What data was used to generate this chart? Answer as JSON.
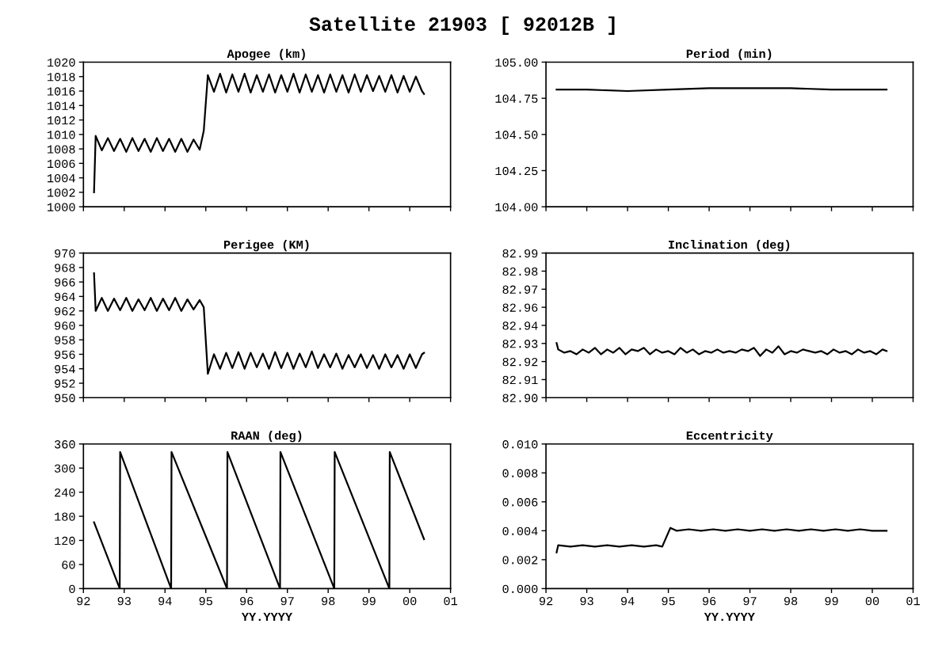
{
  "chart_data": [
    {
      "type": "line",
      "title": "Apogee (km)",
      "annotations": [
        "Satellite 21903 [ 92012B ]"
      ],
      "color": "#000000",
      "x": [
        1992.26,
        1992.3,
        1992.45,
        1992.6,
        1992.75,
        1992.9,
        1993.05,
        1993.2,
        1993.35,
        1993.5,
        1993.65,
        1993.8,
        1993.95,
        1994.1,
        1994.25,
        1994.4,
        1994.55,
        1994.7,
        1994.85,
        1994.95,
        1995.05,
        1995.2,
        1995.35,
        1995.5,
        1995.65,
        1995.8,
        1995.95,
        1996.1,
        1996.25,
        1996.4,
        1996.55,
        1996.7,
        1996.85,
        1997.0,
        1997.15,
        1997.3,
        1997.45,
        1997.6,
        1997.75,
        1997.9,
        1998.05,
        1998.2,
        1998.35,
        1998.5,
        1998.65,
        1998.8,
        1998.95,
        1999.1,
        1999.25,
        1999.4,
        1999.55,
        1999.7,
        1999.85,
        2000.0,
        2000.15,
        2000.3,
        2000.35
      ],
      "values": [
        1002,
        1009.8,
        1007.8,
        1009.5,
        1007.7,
        1009.4,
        1007.6,
        1009.5,
        1007.7,
        1009.4,
        1007.6,
        1009.5,
        1007.7,
        1009.4,
        1007.6,
        1009.4,
        1007.6,
        1009.3,
        1007.9,
        1010.5,
        1018.2,
        1015.9,
        1018.4,
        1015.8,
        1018.3,
        1015.9,
        1018.4,
        1015.8,
        1018.2,
        1015.9,
        1018.3,
        1015.8,
        1018.2,
        1015.9,
        1018.4,
        1015.8,
        1018.3,
        1015.9,
        1018.2,
        1015.8,
        1018.3,
        1015.9,
        1018.2,
        1015.8,
        1018.3,
        1015.9,
        1018.2,
        1016.0,
        1018.1,
        1015.9,
        1018.2,
        1015.8,
        1018.1,
        1015.9,
        1018.0,
        1016.0,
        1015.6
      ],
      "xlim": [
        1992,
        2001
      ],
      "xticks": [
        1992,
        1993,
        1994,
        1995,
        1996,
        1997,
        1998,
        1999,
        2000,
        2001
      ],
      "ylim": [
        1000,
        1020
      ],
      "yticks": [
        1000,
        1002,
        1004,
        1006,
        1008,
        1010,
        1012,
        1014,
        1016,
        1018,
        1020
      ],
      "tick_labels": "y"
    },
    {
      "type": "line",
      "title": "Period (min)",
      "color": "#000000",
      "x": [
        1992.26,
        1993.0,
        1994.0,
        1995.0,
        1996.0,
        1997.0,
        1998.0,
        1999.0,
        2000.35
      ],
      "values": [
        104.81,
        104.81,
        104.8,
        104.81,
        104.82,
        104.82,
        104.82,
        104.81,
        104.81
      ],
      "xlim": [
        1992,
        2001
      ],
      "xticks": [
        1992,
        1993,
        1994,
        1995,
        1996,
        1997,
        1998,
        1999,
        2000,
        2001
      ],
      "ylim": [
        104.0,
        105.0
      ],
      "yticks": [
        {
          "value": 104.0,
          "label": "104.00"
        },
        {
          "value": 104.25,
          "label": "104.25"
        },
        {
          "value": 104.5,
          "label": "104.50"
        },
        {
          "value": 104.75,
          "label": "104.75"
        },
        {
          "value": 105.0,
          "label": "105.00"
        }
      ],
      "tick_labels": "y"
    },
    {
      "type": "line",
      "title": "Perigee (KM)",
      "color": "#000000",
      "x": [
        1992.26,
        1992.3,
        1992.45,
        1992.6,
        1992.75,
        1992.9,
        1993.05,
        1993.2,
        1993.35,
        1993.5,
        1993.65,
        1993.8,
        1993.95,
        1994.1,
        1994.25,
        1994.4,
        1994.55,
        1994.7,
        1994.85,
        1994.95,
        1995.05,
        1995.2,
        1995.35,
        1995.5,
        1995.65,
        1995.8,
        1995.95,
        1996.1,
        1996.25,
        1996.4,
        1996.55,
        1996.7,
        1996.85,
        1997.0,
        1997.15,
        1997.3,
        1997.45,
        1997.6,
        1997.75,
        1997.9,
        1998.05,
        1998.2,
        1998.35,
        1998.5,
        1998.65,
        1998.8,
        1998.95,
        1999.1,
        1999.25,
        1999.4,
        1999.55,
        1999.7,
        1999.85,
        2000.0,
        2000.15,
        2000.3,
        2000.35
      ],
      "values": [
        967.2,
        962.0,
        963.8,
        962.0,
        963.7,
        962.1,
        963.8,
        962.0,
        963.6,
        962.1,
        963.8,
        962.0,
        963.7,
        962.1,
        963.8,
        962.0,
        963.6,
        962.2,
        963.5,
        962.5,
        953.3,
        956.0,
        954.0,
        956.2,
        954.1,
        956.3,
        954.0,
        956.2,
        954.2,
        956.1,
        954.0,
        956.3,
        954.1,
        956.2,
        954.0,
        956.1,
        954.2,
        956.4,
        954.1,
        956.0,
        954.2,
        956.1,
        954.0,
        955.9,
        954.2,
        956.0,
        954.1,
        955.9,
        954.0,
        956.0,
        954.2,
        955.9,
        954.0,
        956.0,
        954.1,
        956.0,
        956.2
      ],
      "xlim": [
        1992,
        2001
      ],
      "xticks": [
        1992,
        1993,
        1994,
        1995,
        1996,
        1997,
        1998,
        1999,
        2000,
        2001
      ],
      "ylim": [
        950,
        970
      ],
      "yticks": [
        950,
        952,
        954,
        956,
        958,
        960,
        962,
        964,
        966,
        968,
        970
      ],
      "tick_labels": "y"
    },
    {
      "type": "line",
      "title": "Inclination (deg)",
      "color": "#000000",
      "x": [
        1992.26,
        1992.3,
        1992.45,
        1992.6,
        1992.75,
        1992.9,
        1993.05,
        1993.2,
        1993.35,
        1993.5,
        1993.65,
        1993.8,
        1993.95,
        1994.1,
        1994.25,
        1994.4,
        1994.55,
        1994.7,
        1994.85,
        1995.0,
        1995.15,
        1995.3,
        1995.45,
        1995.6,
        1995.75,
        1995.9,
        1996.05,
        1996.2,
        1996.35,
        1996.5,
        1996.65,
        1996.8,
        1996.95,
        1997.1,
        1997.25,
        1997.4,
        1997.55,
        1997.7,
        1997.85,
        1998.0,
        1998.15,
        1998.3,
        1998.45,
        1998.6,
        1998.75,
        1998.9,
        1999.05,
        1999.2,
        1999.35,
        1999.5,
        1999.65,
        1999.8,
        1999.95,
        2000.1,
        2000.25,
        2000.35
      ],
      "values": [
        82.934,
        82.93,
        82.928,
        82.929,
        82.927,
        82.93,
        82.928,
        82.931,
        82.927,
        82.93,
        82.928,
        82.931,
        82.927,
        82.93,
        82.929,
        82.931,
        82.927,
        82.93,
        82.928,
        82.929,
        82.927,
        82.931,
        82.928,
        82.93,
        82.927,
        82.929,
        82.928,
        82.93,
        82.928,
        82.929,
        82.928,
        82.93,
        82.929,
        82.931,
        82.926,
        82.93,
        82.928,
        82.932,
        82.927,
        82.929,
        82.928,
        82.93,
        82.929,
        82.928,
        82.929,
        82.927,
        82.93,
        82.928,
        82.929,
        82.927,
        82.93,
        82.928,
        82.929,
        82.927,
        82.93,
        82.929
      ],
      "xlim": [
        1992,
        2001
      ],
      "xticks": [
        1992,
        1993,
        1994,
        1995,
        1996,
        1997,
        1998,
        1999,
        2000,
        2001
      ],
      "ylim": [
        82.9,
        82.99
      ],
      "yticks": [
        {
          "value": 82.9,
          "label": "82.90"
        },
        {
          "value": 82.91125,
          "label": "82.91"
        },
        {
          "value": 82.9225,
          "label": "82.92"
        },
        {
          "value": 82.93375,
          "label": "82.93"
        },
        {
          "value": 82.945,
          "label": "82.94"
        },
        {
          "value": 82.95625,
          "label": "82.96"
        },
        {
          "value": 82.9675,
          "label": "82.97"
        },
        {
          "value": 82.97875,
          "label": "82.98"
        },
        {
          "value": 82.99,
          "label": "82.99"
        }
      ],
      "tick_labels": "y"
    },
    {
      "type": "line",
      "title": "RAAN (deg)",
      "xlabel": "YY.YYYY",
      "color": "#000000",
      "x": [
        1992.26,
        1992.89,
        1992.9,
        1994.15,
        1994.16,
        1995.52,
        1995.53,
        1996.82,
        1996.83,
        1998.15,
        1998.16,
        1999.5,
        1999.51,
        2000.35
      ],
      "values": [
        165,
        0,
        340,
        0,
        340,
        0,
        340,
        0,
        340,
        0,
        340,
        0,
        340,
        123
      ],
      "xlim": [
        1992,
        2001
      ],
      "xticks": [
        {
          "value": 1992,
          "label": "92"
        },
        {
          "value": 1993,
          "label": "93"
        },
        {
          "value": 1994,
          "label": "94"
        },
        {
          "value": 1995,
          "label": "95"
        },
        {
          "value": 1996,
          "label": "96"
        },
        {
          "value": 1997,
          "label": "97"
        },
        {
          "value": 1998,
          "label": "98"
        },
        {
          "value": 1999,
          "label": "99"
        },
        {
          "value": 2000,
          "label": "00"
        },
        {
          "value": 2001,
          "label": "01"
        }
      ],
      "ylim": [
        0,
        360
      ],
      "yticks": [
        0,
        60,
        120,
        180,
        240,
        300,
        360
      ]
    },
    {
      "type": "line",
      "title": "Eccentricity",
      "xlabel": "YY.YYYY",
      "color": "#000000",
      "x": [
        1992.26,
        1992.3,
        1992.6,
        1992.9,
        1993.2,
        1993.5,
        1993.8,
        1994.1,
        1994.4,
        1994.7,
        1994.85,
        1995.05,
        1995.2,
        1995.5,
        1995.8,
        1996.1,
        1996.4,
        1996.7,
        1997.0,
        1997.3,
        1997.6,
        1997.9,
        1998.2,
        1998.5,
        1998.8,
        1999.1,
        1999.4,
        1999.7,
        2000.0,
        2000.35
      ],
      "values": [
        0.0025,
        0.003,
        0.0029,
        0.003,
        0.0029,
        0.003,
        0.0029,
        0.003,
        0.0029,
        0.003,
        0.0029,
        0.0042,
        0.004,
        0.0041,
        0.004,
        0.0041,
        0.004,
        0.0041,
        0.004,
        0.0041,
        0.004,
        0.0041,
        0.004,
        0.0041,
        0.004,
        0.0041,
        0.004,
        0.0041,
        0.004,
        0.004
      ],
      "xlim": [
        1992,
        2001
      ],
      "xticks": [
        {
          "value": 1992,
          "label": "92"
        },
        {
          "value": 1993,
          "label": "93"
        },
        {
          "value": 1994,
          "label": "94"
        },
        {
          "value": 1995,
          "label": "95"
        },
        {
          "value": 1996,
          "label": "96"
        },
        {
          "value": 1997,
          "label": "97"
        },
        {
          "value": 1998,
          "label": "98"
        },
        {
          "value": 1999,
          "label": "99"
        },
        {
          "value": 2000,
          "label": "00"
        },
        {
          "value": 2001,
          "label": "01"
        }
      ],
      "ylim": [
        0.0,
        0.01
      ],
      "yticks": [
        {
          "value": 0.0,
          "label": "0.000"
        },
        {
          "value": 0.002,
          "label": "0.002"
        },
        {
          "value": 0.004,
          "label": "0.004"
        },
        {
          "value": 0.006,
          "label": "0.006"
        },
        {
          "value": 0.008,
          "label": "0.008"
        },
        {
          "value": 0.01,
          "label": "0.010"
        }
      ]
    }
  ]
}
